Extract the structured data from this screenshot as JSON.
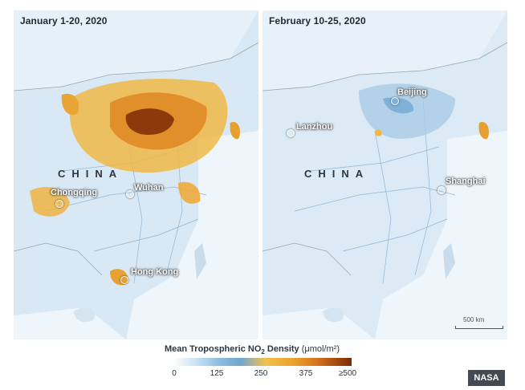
{
  "panels": [
    {
      "title": "January 1-20, 2020",
      "cities": [
        "Chongqing",
        "Wuhan",
        "Hong Kong"
      ],
      "country": "CHINA"
    },
    {
      "title": "February 10-25, 2020",
      "cities": [
        "Beijing",
        "Lanzhou",
        "Shanghai"
      ],
      "country": "CHINA",
      "scalebar": "500 km"
    }
  ],
  "legend": {
    "title": "Mean Tropospheric NO",
    "sub": "2",
    "title_rest": " Density ",
    "unit": "(μmol/m²)",
    "ticks": [
      "0",
      "125",
      "250",
      "375",
      "≥500"
    ],
    "colors": [
      "#ffffff",
      "#8fbde0",
      "#f2c14a",
      "#d26e1a",
      "#7a2a08"
    ]
  },
  "credit": "NASA"
}
